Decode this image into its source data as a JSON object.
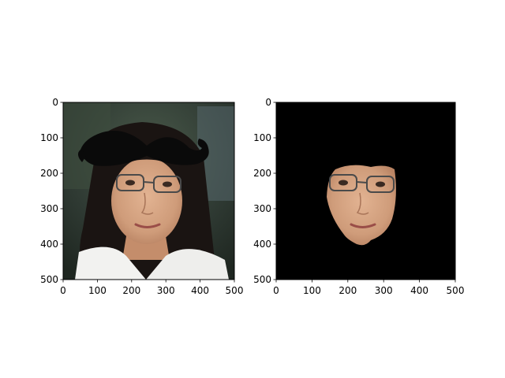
{
  "chart_data": [
    {
      "type": "image",
      "content": "photo of a woman wearing glasses, with a large black mustache overlaid above her head",
      "xlim": [
        0,
        500
      ],
      "ylim": [
        500,
        0
      ],
      "xticks": [
        0,
        100,
        200,
        300,
        400,
        500
      ],
      "yticks": [
        0,
        100,
        200,
        300,
        400,
        500
      ],
      "title": "",
      "xlabel": "",
      "ylabel": ""
    },
    {
      "type": "image",
      "content": "segmented face region on a black background",
      "xlim": [
        0,
        500
      ],
      "ylim": [
        500,
        0
      ],
      "xticks": [
        0,
        100,
        200,
        300,
        400,
        500
      ],
      "yticks": [
        0,
        100,
        200,
        300,
        400,
        500
      ],
      "title": "",
      "xlabel": "",
      "ylabel": ""
    }
  ],
  "colors": {
    "mustache": "#0a0a0a",
    "background_mask": "#000000",
    "skin": "#d6a583",
    "hair": "#1a1412"
  }
}
